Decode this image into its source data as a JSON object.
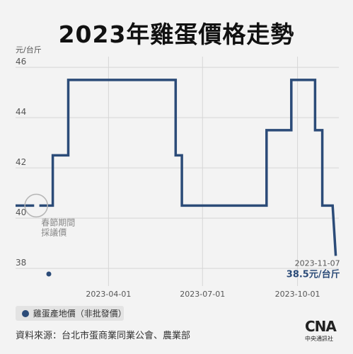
{
  "chart_data": {
    "type": "line",
    "title": "2023年雞蛋價格走勢",
    "unit_label": "元/台斤",
    "x_ticks": [
      {
        "date": "2023-04-01",
        "label": "2023-04-01"
      },
      {
        "date": "2023-07-01",
        "label": "2023-07-01"
      },
      {
        "date": "2023-10-01",
        "label": "2023-10-01"
      }
    ],
    "y_ticks": [
      38,
      40,
      42,
      44,
      46
    ],
    "ylim": [
      37.3,
      46.2
    ],
    "xlim": [
      "2023-01-01",
      "2023-11-10"
    ],
    "grid": true,
    "series": [
      {
        "name": "雞蛋產地價",
        "color": "#2b4b78",
        "points": [
          {
            "x": "2023-01-01",
            "y": 40.5
          },
          {
            "x": "2023-01-19",
            "y": 40.5
          },
          {
            "x": "2023-01-19",
            "y": null
          },
          {
            "x": "2023-01-24",
            "y": null
          },
          {
            "x": "2023-01-24",
            "y": 40.5
          },
          {
            "x": "2023-02-06",
            "y": 40.5
          },
          {
            "x": "2023-02-06",
            "y": 42.5
          },
          {
            "x": "2023-02-21",
            "y": 42.5
          },
          {
            "x": "2023-02-21",
            "y": 45.5
          },
          {
            "x": "2023-06-05",
            "y": 45.5
          },
          {
            "x": "2023-06-05",
            "y": 42.5
          },
          {
            "x": "2023-06-11",
            "y": 42.5
          },
          {
            "x": "2023-06-11",
            "y": 40.5
          },
          {
            "x": "2023-09-01",
            "y": 40.5
          },
          {
            "x": "2023-09-01",
            "y": 43.5
          },
          {
            "x": "2023-09-25",
            "y": 43.5
          },
          {
            "x": "2023-09-25",
            "y": 45.5
          },
          {
            "x": "2023-10-18",
            "y": 45.5
          },
          {
            "x": "2023-10-18",
            "y": 43.5
          },
          {
            "x": "2023-10-25",
            "y": 43.5
          },
          {
            "x": "2023-10-25",
            "y": 40.5
          },
          {
            "x": "2023-11-04",
            "y": 40.5
          },
          {
            "x": "2023-11-07",
            "y": 38.5
          }
        ]
      }
    ],
    "annotations": {
      "spring": {
        "x": "2023-01-21",
        "y": 40.5,
        "text_line1": "春節期間",
        "text_line2": "採議價"
      },
      "last_date": "2023-11-07",
      "last_value": "38.5元/台斤"
    },
    "legend": {
      "label": "雞蛋產地價（非批發價）",
      "placement": "bottom-left"
    }
  },
  "source": "資料來源：台北市蛋商業同業公會、農業部",
  "logo": {
    "mark": "CNA",
    "name": "中央通訊社"
  },
  "colors": {
    "line": "#2b4b78",
    "grid": "#d6d6d6",
    "axis_text": "#555555",
    "background": "#f3f3f3"
  }
}
